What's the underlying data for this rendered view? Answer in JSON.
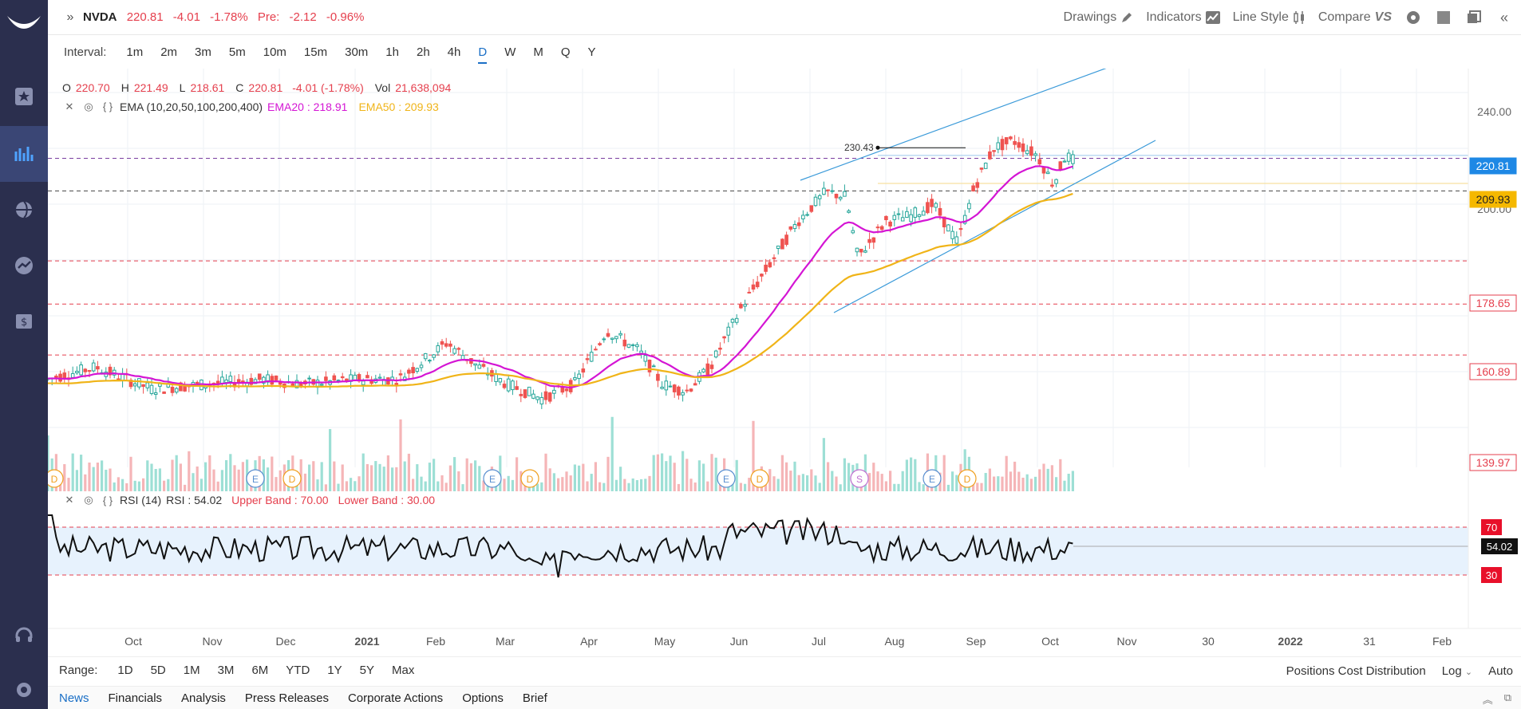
{
  "header": {
    "symbol": "NVDA",
    "last": "220.81",
    "change": "-4.01",
    "change_pct": "-1.78%",
    "pre_label": "Pre:",
    "pre_change": "-2.12",
    "pre_pct": "-0.96%"
  },
  "toolbar": {
    "drawings": "Drawings",
    "indicators": "Indicators",
    "line_style": "Line Style",
    "compare": "Compare"
  },
  "intervals": {
    "label": "Interval:",
    "items": [
      "1m",
      "2m",
      "3m",
      "5m",
      "10m",
      "15m",
      "30m",
      "1h",
      "2h",
      "4h",
      "D",
      "W",
      "M",
      "Q",
      "Y"
    ],
    "active": "D"
  },
  "ohlc": {
    "o_label": "O",
    "o": "220.70",
    "h_label": "H",
    "h": "221.49",
    "l_label": "L",
    "l": "218.61",
    "c_label": "C",
    "c": "220.81",
    "chg": "-4.01 (-1.78%)",
    "vol_label": "Vol",
    "vol": "21,638,094"
  },
  "ema": {
    "label": "EMA (10,20,50,100,200,400)",
    "ema20": "EMA20 : 218.91",
    "ema50": "EMA50 : 209.93"
  },
  "rsi": {
    "label": "RSI (14)",
    "value": "RSI : 54.02",
    "upper": "Upper Band : 70.00",
    "lower": "Lower Band : 30.00"
  },
  "chart_data": {
    "type": "candlestick",
    "annotation_high": "230.43",
    "price_axis_labels": [
      "240.00",
      "200.00"
    ],
    "price_tags": [
      {
        "value": "220.81",
        "color": "#1e88e5"
      },
      {
        "value": "209.93",
        "color": "#f5b800"
      },
      {
        "value": "178.65",
        "color": "#e53f4d"
      },
      {
        "value": "160.89",
        "color": "#e53f4d"
      },
      {
        "value": "139.97",
        "color": "#e53f4d"
      }
    ],
    "x_axis_labels": [
      "Oct",
      "Nov",
      "Dec",
      "2021",
      "Feb",
      "Mar",
      "Apr",
      "May",
      "Jun",
      "Jul",
      "Aug",
      "Sep",
      "Oct",
      "Nov",
      "30",
      "2022",
      "31",
      "Feb"
    ],
    "event_markers": [
      "D",
      "E",
      "D",
      "E",
      "D",
      "E",
      "D",
      "S",
      "E",
      "D"
    ],
    "rsi_tags": [
      {
        "value": "70",
        "color": "#e8102a"
      },
      {
        "value": "54.02",
        "color": "#111111"
      },
      {
        "value": "30",
        "color": "#e8102a"
      }
    ],
    "rsi_bands": [
      30,
      70
    ],
    "colors": {
      "up": "#26a69a",
      "down": "#ef5350",
      "ema20": "#d415d4",
      "ema50": "#f0b418",
      "channel": "#3a9ad9"
    }
  },
  "range": {
    "label": "Range:",
    "items": [
      "1D",
      "5D",
      "1M",
      "3M",
      "6M",
      "YTD",
      "1Y",
      "5Y",
      "Max"
    ],
    "positions": "Positions Cost Distribution",
    "log": "Log",
    "auto": "Auto"
  },
  "tabs": [
    "News",
    "Financials",
    "Analysis",
    "Press Releases",
    "Corporate Actions",
    "Options",
    "Brief"
  ]
}
